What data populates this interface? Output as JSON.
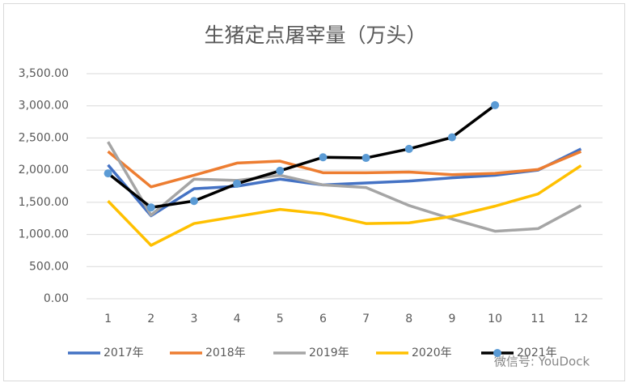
{
  "chart_data": {
    "type": "line",
    "title": "生猪定点屠宰量（万头）",
    "categories": [
      "1",
      "2",
      "3",
      "4",
      "5",
      "6",
      "7",
      "8",
      "9",
      "10",
      "11",
      "12"
    ],
    "series": [
      {
        "name": "2017年",
        "color": "#4472c4",
        "values": [
          2080,
          1290,
          1710,
          1750,
          1860,
          1770,
          1800,
          1830,
          1880,
          1920,
          2000,
          2330
        ]
      },
      {
        "name": "2018年",
        "color": "#ed7d31",
        "values": [
          2290,
          1740,
          1920,
          2110,
          2140,
          1960,
          1960,
          1970,
          1930,
          1950,
          2010,
          2290
        ]
      },
      {
        "name": "2019年",
        "color": "#a5a5a5",
        "values": [
          2440,
          1300,
          1860,
          1840,
          1920,
          1770,
          1730,
          1450,
          1240,
          1050,
          1090,
          1450
        ]
      },
      {
        "name": "2020年",
        "color": "#ffc000",
        "values": [
          1520,
          830,
          1170,
          1280,
          1390,
          1320,
          1170,
          1180,
          1280,
          1440,
          1630,
          2070
        ]
      },
      {
        "name": "2021年",
        "color": "#000000",
        "marker_color": "#5b9bd5",
        "values": [
          1950,
          1420,
          1520,
          1790,
          1990,
          2200,
          2190,
          2330,
          2510,
          3010,
          null,
          null
        ]
      }
    ],
    "ylim": [
      0,
      3500
    ],
    "yticks": [
      {
        "value": 0,
        "label": "0.00"
      },
      {
        "value": 500,
        "label": "500.00"
      },
      {
        "value": 1000,
        "label": "1,000.00"
      },
      {
        "value": 1500,
        "label": "1,500.00"
      },
      {
        "value": 2000,
        "label": "2,000.00"
      },
      {
        "value": 2500,
        "label": "2,500.00"
      },
      {
        "value": 3000,
        "label": "3,000.00"
      },
      {
        "value": 3500,
        "label": "3,500.00"
      }
    ],
    "grid": true,
    "legend": "bottom",
    "watermark": "微信号: YouDock"
  }
}
